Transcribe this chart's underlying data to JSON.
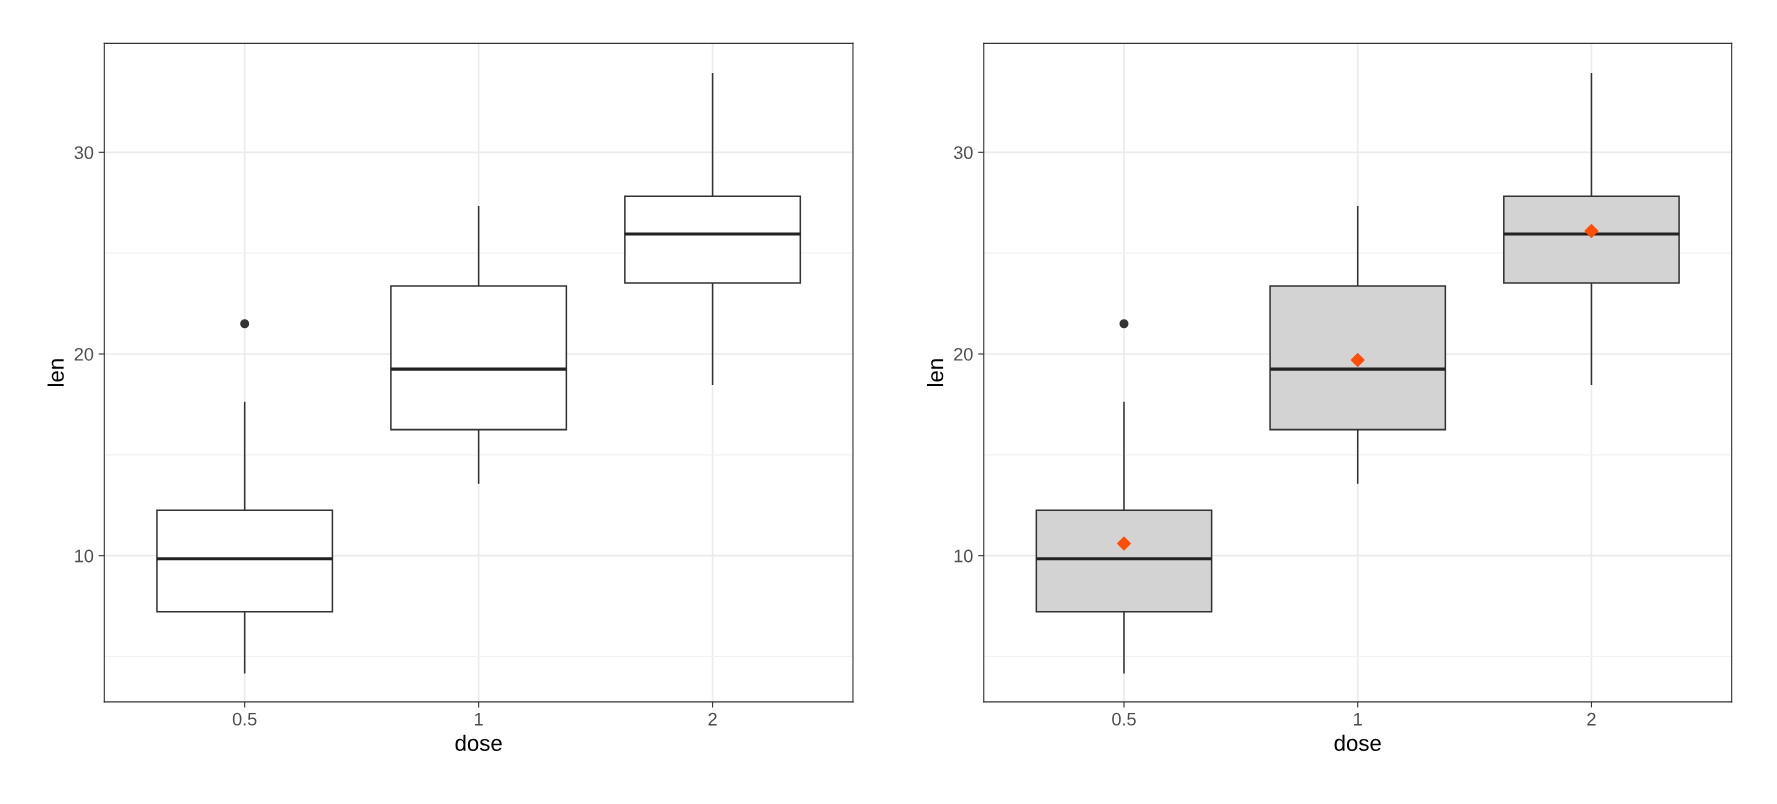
{
  "chart_data": [
    {
      "type": "box",
      "xlabel": "dose",
      "ylabel": "len",
      "categories": [
        "0.5",
        "1",
        "2"
      ],
      "ylim": [
        2.75,
        35.4
      ],
      "yticks": [
        {
          "value": 5,
          "label": null
        },
        10,
        {
          "value": 15,
          "label": null
        },
        20,
        {
          "value": 25,
          "label": null
        },
        30
      ],
      "grid": true,
      "series": [
        {
          "type": "box",
          "color": "#ffffff",
          "boxes": [
            {
              "low": 4.2,
              "q1": 7.225,
              "median": 9.85,
              "q3": 12.25,
              "high": 17.6,
              "outliers": [
                21.5
              ]
            },
            {
              "low": 13.6,
              "q1": 16.25,
              "median": 19.25,
              "q3": 23.375,
              "high": 27.3
            },
            {
              "low": 18.5,
              "q1": 23.525,
              "median": 25.95,
              "q3": 27.825,
              "high": 33.9
            }
          ]
        }
      ]
    },
    {
      "type": "box",
      "xlabel": "dose",
      "ylabel": "len",
      "categories": [
        "0.5",
        "1",
        "2"
      ],
      "ylim": [
        2.75,
        35.4
      ],
      "yticks": [
        {
          "value": 5,
          "label": null
        },
        10,
        {
          "value": 15,
          "label": null
        },
        20,
        {
          "value": 25,
          "label": null
        },
        30
      ],
      "grid": true,
      "series": [
        {
          "type": "box",
          "color": "#d3d3d3",
          "boxes": [
            {
              "low": 4.2,
              "q1": 7.225,
              "median": 9.85,
              "q3": 12.25,
              "high": 17.6,
              "outliers": [
                21.5
              ]
            },
            {
              "low": 13.6,
              "q1": 16.25,
              "median": 19.25,
              "q3": 23.375,
              "high": 27.3
            },
            {
              "low": 18.5,
              "q1": 23.525,
              "median": 25.95,
              "q3": 27.825,
              "high": 33.9
            }
          ]
        },
        {
          "type": "scatter",
          "color": "#fc4e07",
          "marker": "diamond",
          "x": [
            "0.5",
            "1",
            "2"
          ],
          "values": [
            10.6,
            19.7,
            26.1
          ]
        }
      ]
    }
  ]
}
